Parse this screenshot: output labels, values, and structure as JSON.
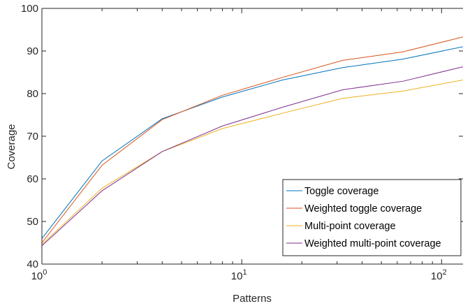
{
  "chart_data": {
    "type": "line",
    "xlabel": "Patterns",
    "ylabel": "Coverage",
    "xscale": "log",
    "xlim": [
      1,
      128
    ],
    "ylim": [
      40,
      100
    ],
    "yticks": [
      40,
      50,
      60,
      70,
      80,
      90,
      100
    ],
    "xticks": [
      {
        "value": 1,
        "base": "10",
        "exp": "0"
      },
      {
        "value": 10,
        "base": "10",
        "exp": "1"
      },
      {
        "value": 100,
        "base": "10",
        "exp": "2"
      }
    ],
    "grid": false,
    "legend_position": "bottom-right",
    "x": [
      1,
      2,
      4,
      8,
      16,
      32,
      64,
      128
    ],
    "series": [
      {
        "name": "Toggle coverage",
        "color": "#0072BD",
        "values": [
          46.0,
          64.2,
          74.1,
          79.2,
          83.2,
          86.1,
          88.1,
          91.0
        ]
      },
      {
        "name": "Weighted toggle coverage",
        "color": "#D95319",
        "values": [
          45.0,
          63.2,
          73.9,
          79.6,
          83.8,
          87.8,
          89.8,
          93.3
        ]
      },
      {
        "name": "Multi-point coverage",
        "color": "#EDB120",
        "values": [
          44.6,
          57.8,
          66.4,
          71.8,
          75.4,
          78.9,
          80.6,
          83.2
        ]
      },
      {
        "name": "Weighted multi-point coverage",
        "color": "#7E2F8E",
        "values": [
          44.3,
          57.2,
          66.4,
          72.4,
          76.8,
          80.9,
          82.9,
          86.3
        ]
      }
    ]
  }
}
